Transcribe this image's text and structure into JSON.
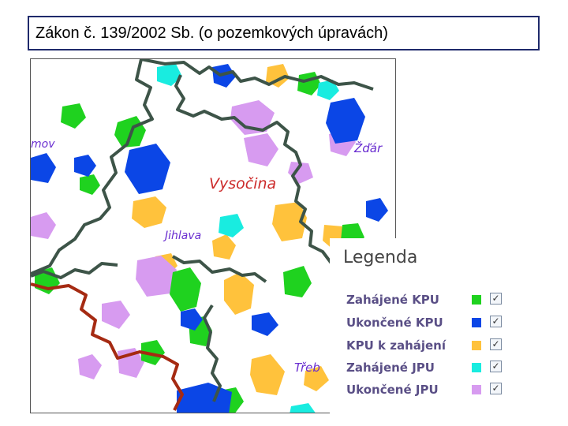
{
  "title": "Zákon č. 139/2002 Sb. (o pozemkových úpravách)",
  "map": {
    "labels": [
      "mov",
      "Žďár",
      "Vysočina",
      "Jihlava",
      "Třeb"
    ]
  },
  "legend": {
    "title": "Legenda",
    "items": [
      {
        "label": "Zahájené KPU",
        "color": "#1fd21f",
        "checked": true
      },
      {
        "label": "Ukončené KPU",
        "color": "#0b46e6",
        "checked": true
      },
      {
        "label": "KPU k zahájení",
        "color": "#ffc23c",
        "checked": true
      },
      {
        "label": "Zahájené JPU",
        "color": "#19ece0",
        "checked": true
      },
      {
        "label": "Ukončené JPU",
        "color": "#d79bf0",
        "checked": true
      }
    ]
  },
  "colors": {
    "region_border": "#3d5448",
    "state_border": "#a52a12",
    "region_label": "#cc2a2a",
    "town_label": "#6a2ed0"
  }
}
